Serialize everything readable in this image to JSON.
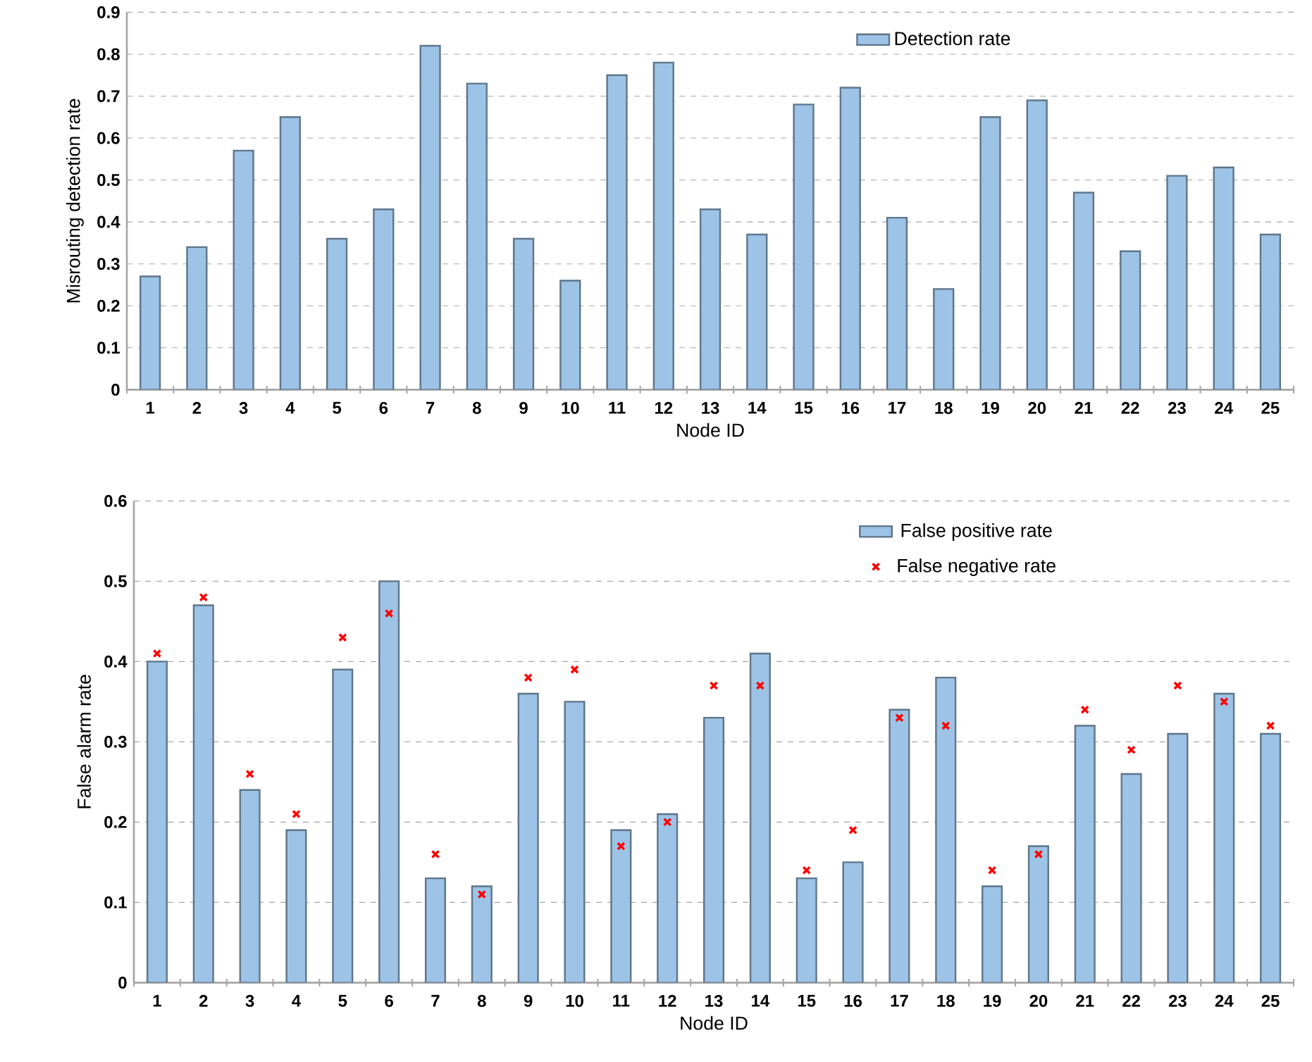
{
  "chart_data": [
    {
      "type": "bar",
      "xlabel": "Node ID",
      "ylabel": "Misrouting detection rate",
      "categories": [
        "1",
        "2",
        "3",
        "4",
        "5",
        "6",
        "7",
        "8",
        "9",
        "10",
        "11",
        "12",
        "13",
        "14",
        "15",
        "16",
        "17",
        "18",
        "19",
        "20",
        "21",
        "22",
        "23",
        "24",
        "25"
      ],
      "series": [
        {
          "name": "Detection rate",
          "color": "#9dc3e6",
          "values": [
            0.27,
            0.34,
            0.57,
            0.65,
            0.36,
            0.43,
            0.82,
            0.73,
            0.36,
            0.26,
            0.75,
            0.78,
            0.43,
            0.37,
            0.68,
            0.72,
            0.41,
            0.24,
            0.65,
            0.69,
            0.47,
            0.33,
            0.51,
            0.53,
            0.37
          ]
        }
      ],
      "ylim": [
        0,
        0.9
      ],
      "yticks": [
        0,
        0.1,
        0.2,
        0.3,
        0.4,
        0.5,
        0.6,
        0.7,
        0.8,
        0.9
      ],
      "grid": "y",
      "legend": "top right"
    },
    {
      "type": "bar",
      "xlabel": "Node ID",
      "ylabel": "False alarm rate",
      "categories": [
        "1",
        "2",
        "3",
        "4",
        "5",
        "6",
        "7",
        "8",
        "9",
        "10",
        "11",
        "12",
        "13",
        "14",
        "15",
        "16",
        "17",
        "18",
        "19",
        "20",
        "21",
        "22",
        "23",
        "24",
        "25"
      ],
      "series": [
        {
          "name": "False positive rate",
          "color": "#9dc3e6",
          "values": [
            0.4,
            0.47,
            0.24,
            0.19,
            0.39,
            0.5,
            0.13,
            0.12,
            0.36,
            0.35,
            0.19,
            0.21,
            0.33,
            0.41,
            0.13,
            0.15,
            0.34,
            0.38,
            0.12,
            0.17,
            0.32,
            0.26,
            0.31,
            0.36,
            0.31
          ]
        },
        {
          "name": "False negative rate",
          "type": "scatter",
          "marker": "cross",
          "color": "#ff0000",
          "values": [
            0.41,
            0.48,
            0.26,
            0.21,
            0.43,
            0.46,
            0.16,
            0.11,
            0.38,
            0.39,
            0.17,
            0.2,
            0.37,
            0.37,
            0.14,
            0.19,
            0.33,
            0.32,
            0.14,
            0.16,
            0.34,
            0.29,
            0.37,
            0.35,
            0.32
          ]
        }
      ],
      "ylim": [
        0,
        0.6
      ],
      "yticks": [
        0,
        0.1,
        0.2,
        0.3,
        0.4,
        0.5,
        0.6
      ],
      "grid": "y",
      "legend": "top right"
    }
  ]
}
